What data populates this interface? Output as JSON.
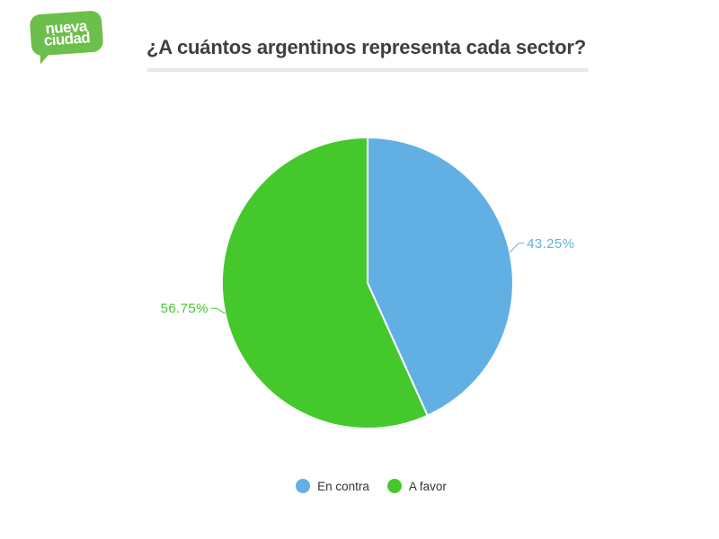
{
  "logo": {
    "line1": "nueva",
    "line2": "ciudad",
    "bg_color": "#6cbf4b",
    "text_color": "#ffffff"
  },
  "header": {
    "title": "¿A cuántos argentinos representa cada sector?",
    "title_color": "#3f3f3f",
    "underline_color": "#e8e8e8"
  },
  "chart_data": {
    "type": "pie",
    "title": "¿A cuántos argentinos representa cada sector?",
    "start_angle_deg": 0,
    "direction": "clockwise",
    "legend_position": "bottom",
    "slice_border_color": "#ffffff",
    "series": [
      {
        "name": "En contra",
        "value": 43.25,
        "label": "43.25%",
        "color": "#62afe3"
      },
      {
        "name": "A favor",
        "value": 56.75,
        "label": "56.75%",
        "color": "#44c82c"
      }
    ]
  },
  "legend": {
    "text_color": "#333333"
  }
}
